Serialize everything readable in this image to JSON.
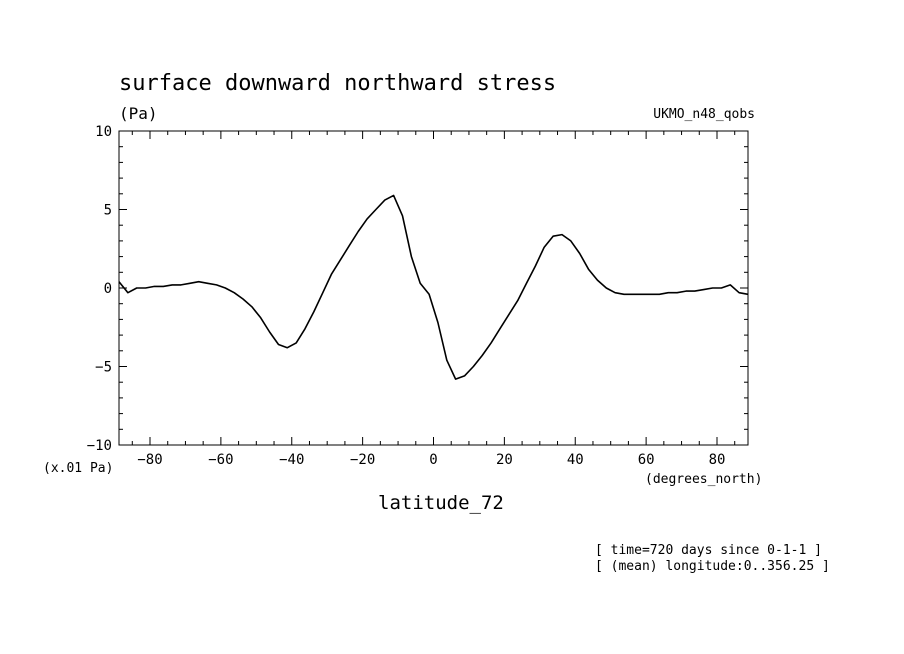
{
  "chart_data": {
    "type": "line",
    "title": "surface downward northward stress",
    "units": "(Pa)",
    "model_label": "UKMO_n48_qobs",
    "ylabel_scale": "(x.01 Pa)",
    "xlabel_units": "(degrees_north)",
    "xlabel": "latitude_72",
    "footer_lines": [
      "[ time=720 days since 0-1-1 ]",
      "[ (mean) longitude:0..356.25 ]"
    ],
    "xlim": [
      -88.75,
      88.75
    ],
    "ylim": [
      -10,
      10
    ],
    "xticks": [
      -80,
      -60,
      -40,
      -20,
      0,
      20,
      40,
      60,
      80
    ],
    "yticks": [
      -10,
      -5,
      0,
      5,
      10
    ],
    "line_color": "#000000",
    "series": [
      {
        "x": [
          -88.75,
          -86.25,
          -83.75,
          -81.25,
          -78.75,
          -76.25,
          -73.75,
          -71.25,
          -68.75,
          -66.25,
          -63.75,
          -61.25,
          -58.75,
          -56.25,
          -53.75,
          -51.25,
          -48.75,
          -46.25,
          -43.75,
          -41.25,
          -38.75,
          -36.25,
          -33.75,
          -31.25,
          -28.75,
          -26.25,
          -23.75,
          -21.25,
          -18.75,
          -16.25,
          -13.75,
          -11.25,
          -8.75,
          -6.25,
          -3.75,
          -1.25,
          1.25,
          3.75,
          6.25,
          8.75,
          11.25,
          13.75,
          16.25,
          18.75,
          21.25,
          23.75,
          26.25,
          28.75,
          31.25,
          33.75,
          36.25,
          38.75,
          41.25,
          43.75,
          46.25,
          48.75,
          51.25,
          53.75,
          56.25,
          58.75,
          61.25,
          63.75,
          66.25,
          68.75,
          71.25,
          73.75,
          76.25,
          78.75,
          81.25,
          83.75,
          86.25,
          88.75
        ],
        "y": [
          0.4,
          -0.3,
          0.0,
          0.0,
          0.1,
          0.1,
          0.2,
          0.2,
          0.3,
          0.4,
          0.3,
          0.2,
          0.0,
          -0.3,
          -0.7,
          -1.2,
          -1.9,
          -2.8,
          -3.6,
          -3.8,
          -3.5,
          -2.6,
          -1.5,
          -0.3,
          0.9,
          1.8,
          2.7,
          3.6,
          4.4,
          5.0,
          5.6,
          5.9,
          4.6,
          2.0,
          0.3,
          -0.4,
          -2.2,
          -4.6,
          -5.8,
          -5.6,
          -5.0,
          -4.3,
          -3.5,
          -2.6,
          -1.7,
          -0.8,
          0.3,
          1.4,
          2.6,
          3.3,
          3.4,
          3.0,
          2.2,
          1.2,
          0.5,
          0.0,
          -0.3,
          -0.4,
          -0.4,
          -0.4,
          -0.4,
          -0.4,
          -0.3,
          -0.3,
          -0.2,
          -0.2,
          -0.1,
          0.0,
          0.0,
          0.2,
          -0.3,
          -0.4
        ]
      }
    ]
  }
}
